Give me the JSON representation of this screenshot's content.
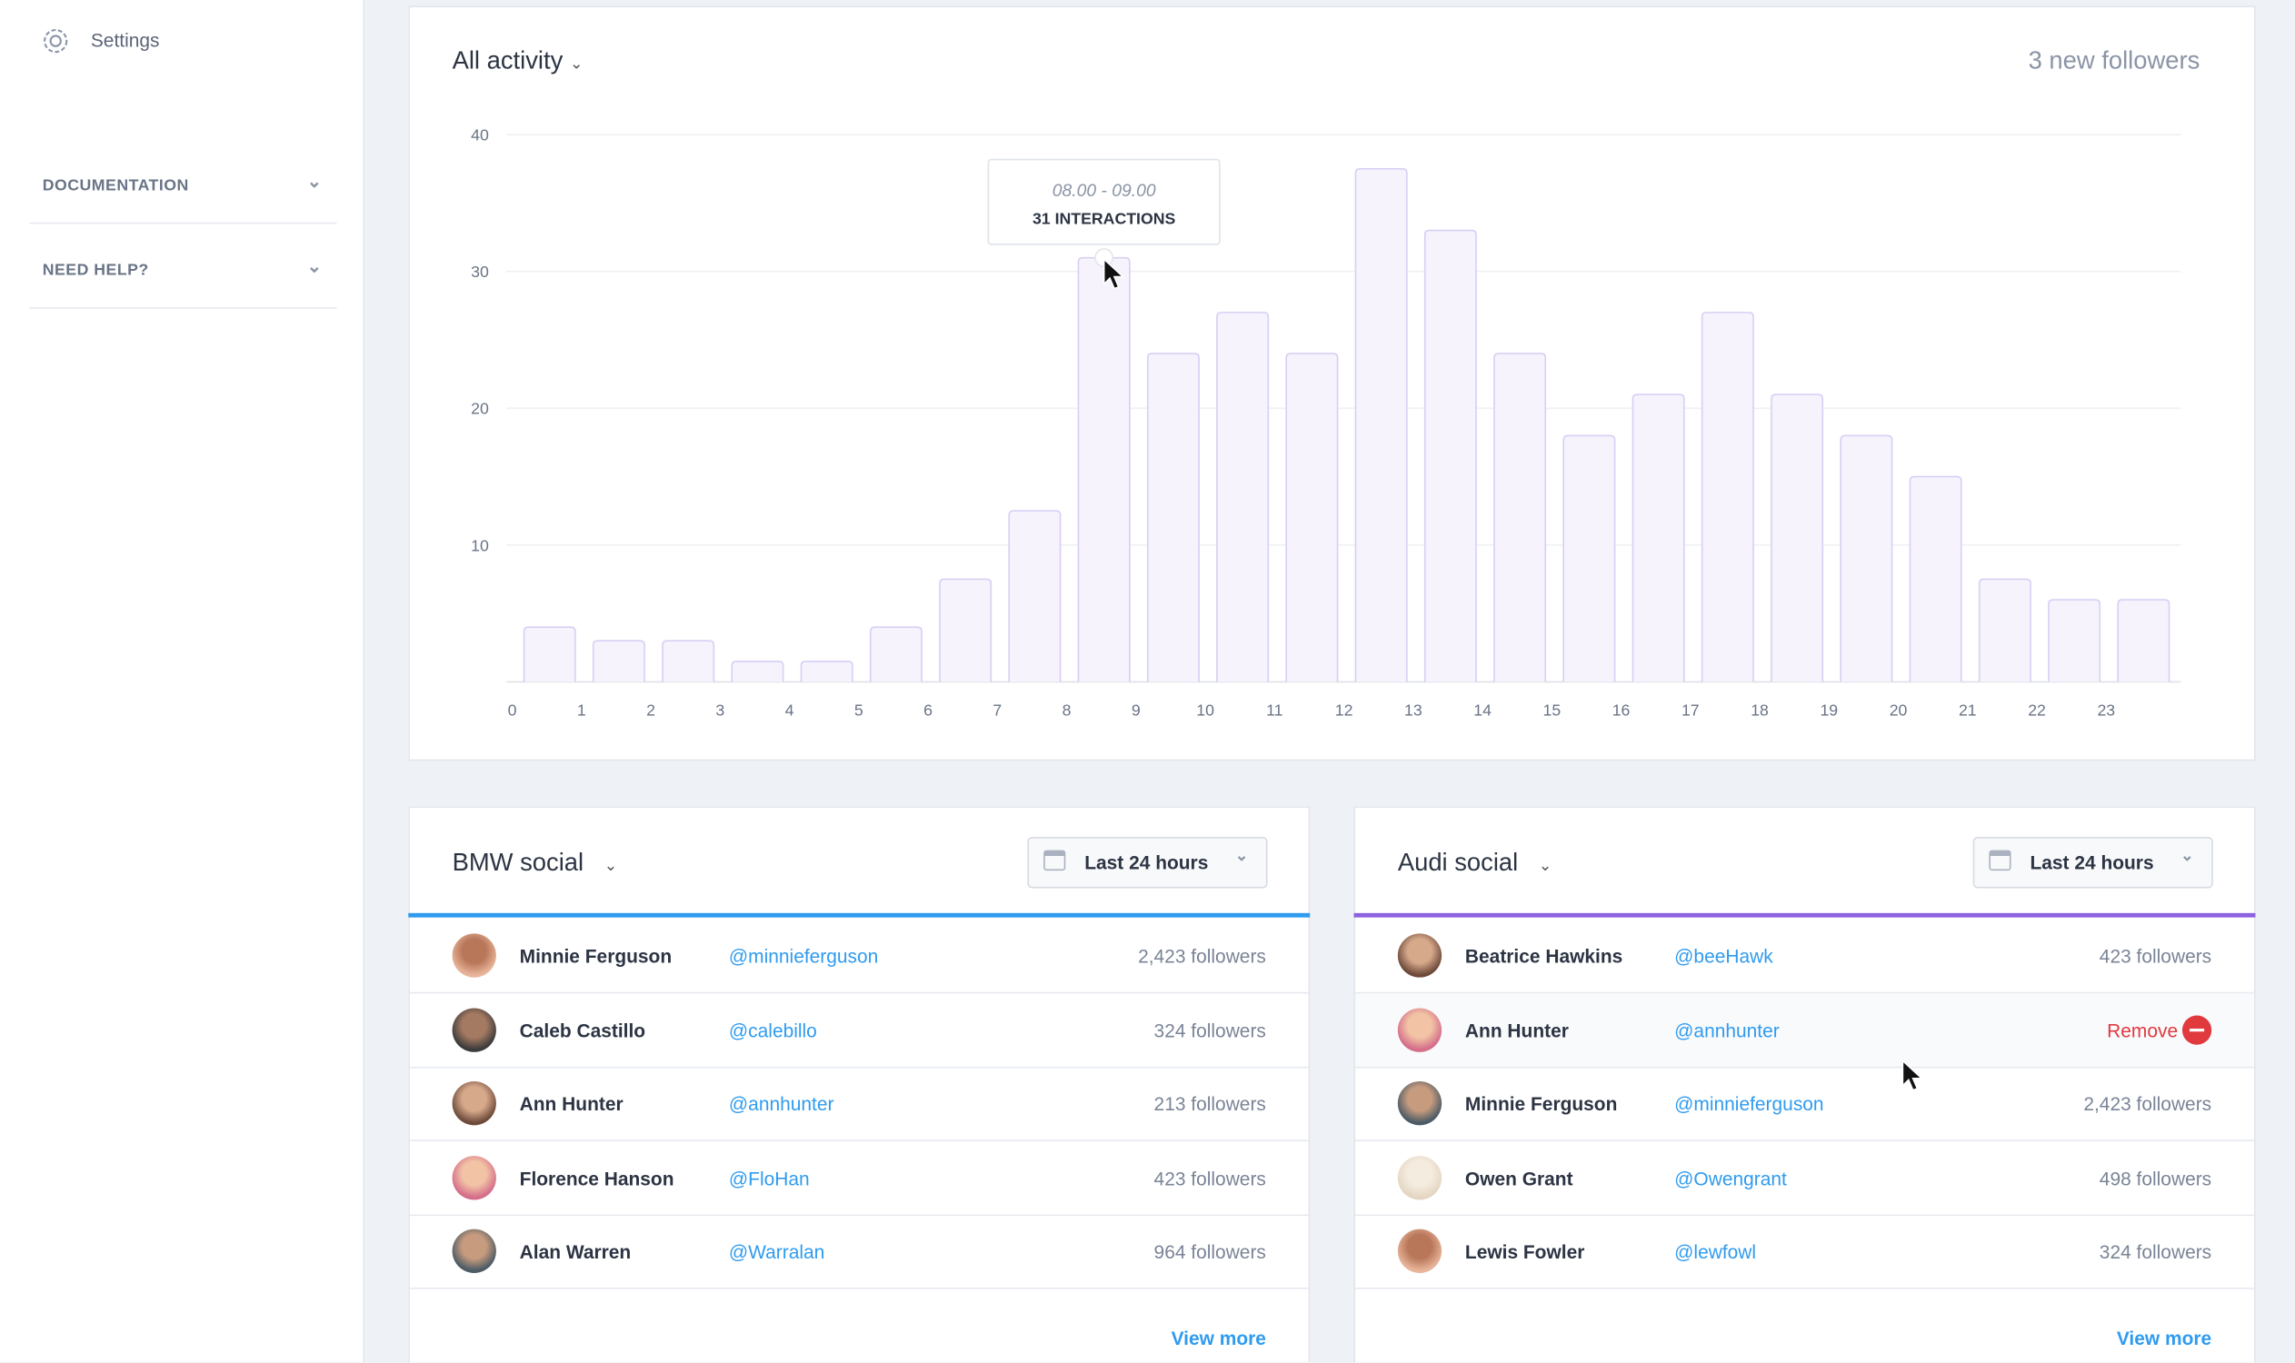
{
  "sidebar": {
    "settings": "Settings",
    "sections": [
      "DOCUMENTATION",
      "NEED HELP?"
    ]
  },
  "activity": {
    "title": "All activity",
    "followers": "3 new followers"
  },
  "chart_data": {
    "type": "bar",
    "categories": [
      "0",
      "1",
      "2",
      "3",
      "4",
      "5",
      "6",
      "7",
      "8",
      "9",
      "10",
      "11",
      "12",
      "13",
      "14",
      "15",
      "16",
      "17",
      "18",
      "19",
      "20",
      "21",
      "22",
      "23"
    ],
    "values": [
      4,
      3,
      3,
      1.5,
      1.5,
      4,
      7.5,
      12.5,
      31,
      24,
      27,
      24,
      37.5,
      33,
      24,
      18,
      21,
      27,
      21,
      18,
      15,
      7.5,
      6,
      6
    ],
    "color": "#f6f3fd",
    "edge_color": "#d8cff4",
    "ylim": [
      0,
      40
    ],
    "yticks": [
      10,
      20,
      30,
      40
    ],
    "grid": true,
    "tooltip": {
      "time": "08.00 - 09.00",
      "label": "31 INTERACTIONS",
      "index": 8
    }
  },
  "panels": [
    {
      "title": "BMW social",
      "range": "Last 24 hours",
      "accent": "#2f9bef",
      "more": "View more",
      "rows": [
        {
          "name": "Minnie Ferguson",
          "handle": "@minnieferguson",
          "info": "2,423 followers"
        },
        {
          "name": "Caleb Castillo",
          "handle": "@calebillo",
          "info": "324 followers"
        },
        {
          "name": "Ann Hunter",
          "handle": "@annhunter",
          "info": "213 followers"
        },
        {
          "name": "Florence Hanson",
          "handle": "@FloHan",
          "info": "423 followers"
        },
        {
          "name": "Alan Warren",
          "handle": "@Warralan",
          "info": "964 followers"
        }
      ]
    },
    {
      "title": "Audi social",
      "range": "Last 24 hours",
      "accent": "#8c62e0",
      "more": "View more",
      "rows": [
        {
          "name": "Beatrice Hawkins",
          "handle": "@beeHawk",
          "info": "423 followers"
        },
        {
          "name": "Ann Hunter",
          "handle": "@annhunter",
          "action": "Remove"
        },
        {
          "name": "Minnie Ferguson",
          "handle": "@minnieferguson",
          "info": "2,423 followers"
        },
        {
          "name": "Owen Grant",
          "handle": "@Owengrant",
          "info": "498 followers"
        },
        {
          "name": "Lewis Fowler",
          "handle": "@lewfowl",
          "info": "324 followers"
        }
      ]
    }
  ]
}
